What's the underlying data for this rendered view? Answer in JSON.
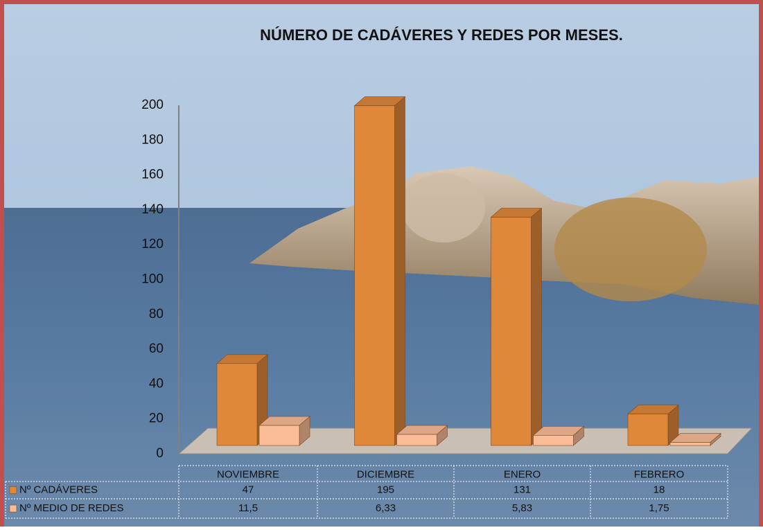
{
  "chart_data": {
    "type": "bar3d",
    "title": "NÚMERO DE CADÁVERES Y REDES POR MESES.",
    "categories": [
      "NOVIEMBRE",
      "DICIEMBRE",
      "ENERO",
      "FEBRERO"
    ],
    "series": [
      {
        "name": "Nº CADÁVERES",
        "color": "#e0883a",
        "values": [
          47,
          195,
          131,
          18
        ]
      },
      {
        "name": "Nº MEDIO DE REDES",
        "color": "#fbbd98",
        "values": [
          11.5,
          6.33,
          5.83,
          1.75
        ],
        "value_labels": [
          "11,5",
          "6,33",
          "5,83",
          "1,75"
        ]
      }
    ],
    "ylim": [
      0,
      200
    ],
    "yticks": [
      0,
      20,
      40,
      60,
      80,
      100,
      120,
      140,
      160,
      180,
      200
    ],
    "data_table": true
  }
}
